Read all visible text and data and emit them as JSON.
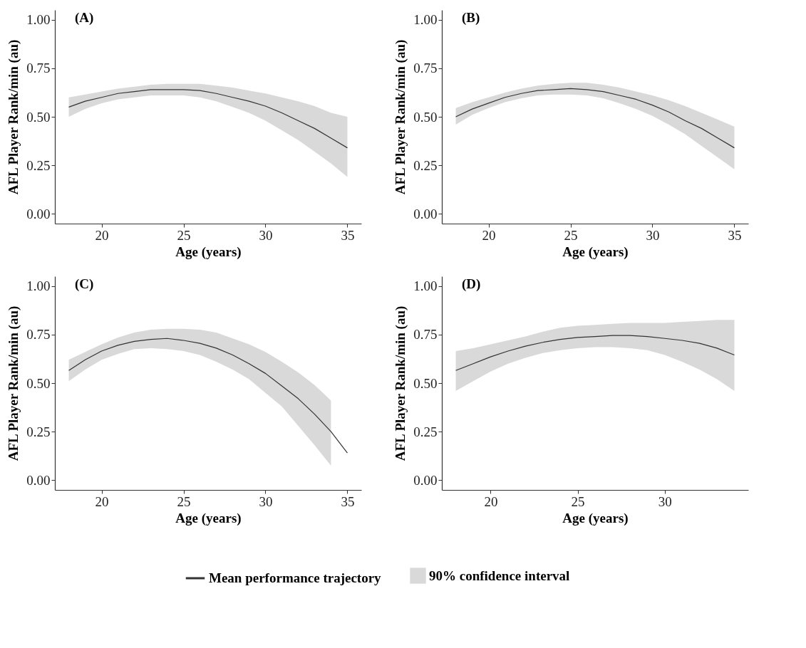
{
  "chart_data": [
    {
      "type": "line",
      "title": "(A)",
      "xlabel": "Age (years)",
      "ylabel": "AFL Player Rank/min (au)",
      "xlim": [
        17.15,
        35.85
      ],
      "xticks": [
        20,
        25,
        30,
        35
      ],
      "ylim": [
        -0.05,
        1.05
      ],
      "yticks": [
        {
          "value": 0,
          "label": "0.00"
        },
        {
          "value": 0.25,
          "label": "0.25"
        },
        {
          "value": 0.5,
          "label": "0.50"
        },
        {
          "value": 0.75,
          "label": "0.75"
        },
        {
          "value": 1,
          "label": "1.00"
        }
      ],
      "grid": false,
      "x": [
        18,
        19,
        20,
        21,
        22,
        23,
        24,
        25,
        26,
        27,
        28,
        29,
        30,
        31,
        32,
        33,
        34,
        35
      ],
      "series": [
        {
          "color": "#333333",
          "values": [
            0.55,
            0.58,
            0.6,
            0.62,
            0.63,
            0.64,
            0.64,
            0.64,
            0.635,
            0.62,
            0.6,
            0.58,
            0.555,
            0.52,
            0.48,
            0.44,
            0.39,
            0.34
          ],
          "lower": [
            0.5,
            0.54,
            0.57,
            0.59,
            0.6,
            0.61,
            0.61,
            0.61,
            0.6,
            0.58,
            0.55,
            0.52,
            0.48,
            0.43,
            0.38,
            0.32,
            0.26,
            0.19
          ],
          "upper": [
            0.6,
            0.615,
            0.63,
            0.645,
            0.655,
            0.665,
            0.67,
            0.67,
            0.67,
            0.66,
            0.65,
            0.635,
            0.62,
            0.6,
            0.58,
            0.555,
            0.52,
            0.5
          ]
        }
      ]
    },
    {
      "type": "line",
      "title": "(B)",
      "xlabel": "Age (years)",
      "ylabel": "AFL Player Rank/min (au)",
      "xlim": [
        17.15,
        35.85
      ],
      "xticks": [
        20,
        25,
        30,
        35
      ],
      "ylim": [
        -0.05,
        1.05
      ],
      "yticks": [
        {
          "value": 0,
          "label": "0.00"
        },
        {
          "value": 0.25,
          "label": "0.25"
        },
        {
          "value": 0.5,
          "label": "0.50"
        },
        {
          "value": 0.75,
          "label": "0.75"
        },
        {
          "value": 1,
          "label": "1.00"
        }
      ],
      "grid": false,
      "x": [
        18,
        19,
        20,
        21,
        22,
        23,
        24,
        25,
        26,
        27,
        28,
        29,
        30,
        31,
        32,
        33,
        34,
        35
      ],
      "series": [
        {
          "color": "#333333",
          "values": [
            0.5,
            0.54,
            0.57,
            0.6,
            0.62,
            0.635,
            0.64,
            0.645,
            0.64,
            0.63,
            0.61,
            0.59,
            0.56,
            0.525,
            0.48,
            0.44,
            0.39,
            0.34
          ],
          "lower": [
            0.46,
            0.51,
            0.545,
            0.575,
            0.595,
            0.61,
            0.615,
            0.615,
            0.61,
            0.595,
            0.57,
            0.54,
            0.505,
            0.46,
            0.41,
            0.35,
            0.29,
            0.23
          ],
          "upper": [
            0.545,
            0.575,
            0.6,
            0.625,
            0.645,
            0.66,
            0.67,
            0.675,
            0.675,
            0.665,
            0.65,
            0.63,
            0.61,
            0.585,
            0.555,
            0.52,
            0.485,
            0.45
          ]
        }
      ]
    },
    {
      "type": "line",
      "title": "(C)",
      "xlabel": "Age (years)",
      "ylabel": "AFL Player Rank/min (au)",
      "xlim": [
        17.15,
        35.85
      ],
      "xticks": [
        20,
        25,
        30,
        35
      ],
      "ylim": [
        -0.05,
        1.05
      ],
      "yticks": [
        {
          "value": 0,
          "label": "0.00"
        },
        {
          "value": 0.25,
          "label": "0.25"
        },
        {
          "value": 0.5,
          "label": "0.50"
        },
        {
          "value": 0.75,
          "label": "0.75"
        },
        {
          "value": 1,
          "label": "1.00"
        }
      ],
      "grid": false,
      "x": [
        18,
        19,
        20,
        21,
        22,
        23,
        24,
        25,
        26,
        27,
        28,
        29,
        30,
        31,
        32,
        33,
        34,
        35
      ],
      "series": [
        {
          "color": "#333333",
          "values": [
            0.565,
            0.62,
            0.665,
            0.695,
            0.715,
            0.725,
            0.73,
            0.72,
            0.705,
            0.68,
            0.645,
            0.6,
            0.55,
            0.485,
            0.42,
            0.34,
            0.25,
            0.14
          ],
          "lower": [
            0.51,
            0.57,
            0.62,
            0.65,
            0.675,
            0.68,
            0.675,
            0.665,
            0.645,
            0.61,
            0.57,
            0.52,
            0.45,
            0.38,
            0.28,
            0.18,
            0.075,
            null
          ],
          "upper": [
            0.62,
            0.66,
            0.7,
            0.735,
            0.76,
            0.775,
            0.78,
            0.78,
            0.775,
            0.76,
            0.73,
            0.7,
            0.66,
            0.61,
            0.555,
            0.49,
            0.41,
            null
          ]
        }
      ]
    },
    {
      "type": "line",
      "title": "(D)",
      "xlabel": "Age (years)",
      "ylabel": "AFL Player Rank/min (au)",
      "xlim": [
        17.2,
        34.8
      ],
      "xticks": [
        20,
        25,
        30
      ],
      "ylim": [
        -0.05,
        1.05
      ],
      "yticks": [
        {
          "value": 0,
          "label": "0.00"
        },
        {
          "value": 0.25,
          "label": "0.25"
        },
        {
          "value": 0.5,
          "label": "0.50"
        },
        {
          "value": 0.75,
          "label": "0.75"
        },
        {
          "value": 1,
          "label": "1.00"
        }
      ],
      "grid": false,
      "legend": "bottom",
      "annotations": [
        "90% confidence interval"
      ],
      "x": [
        18,
        19,
        20,
        21,
        22,
        23,
        24,
        25,
        26,
        27,
        28,
        29,
        30,
        31,
        32,
        33,
        34
      ],
      "series": [
        {
          "name": "Mean performance trajectory",
          "color": "#333333",
          "values": [
            0.565,
            0.6,
            0.635,
            0.665,
            0.69,
            0.71,
            0.725,
            0.735,
            0.74,
            0.745,
            0.745,
            0.74,
            0.73,
            0.72,
            0.705,
            0.68,
            0.645
          ],
          "lower": [
            0.46,
            0.51,
            0.56,
            0.6,
            0.63,
            0.655,
            0.67,
            0.68,
            0.685,
            0.685,
            0.68,
            0.67,
            0.645,
            0.61,
            0.57,
            0.52,
            0.46
          ],
          "upper": [
            0.665,
            0.68,
            0.7,
            0.72,
            0.74,
            0.765,
            0.785,
            0.795,
            0.8,
            0.805,
            0.81,
            0.81,
            0.81,
            0.815,
            0.82,
            0.825,
            0.825
          ]
        }
      ]
    }
  ]
}
